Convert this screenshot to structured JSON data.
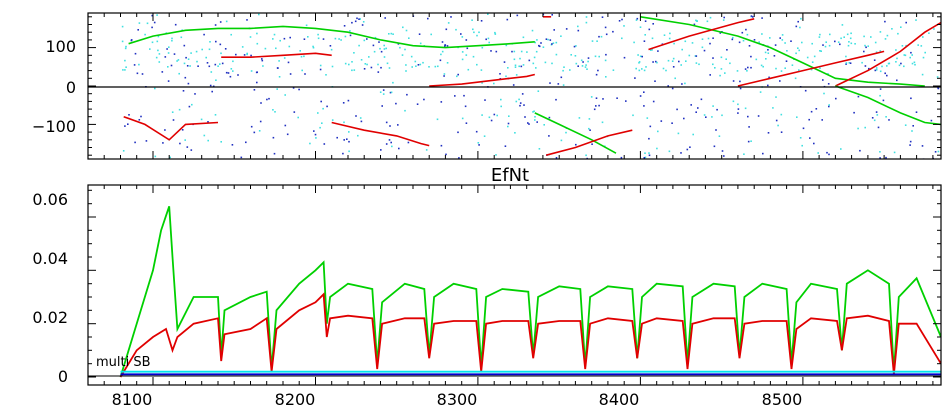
{
  "chart_data": [
    {
      "type": "scatter",
      "panel": "top",
      "title": "",
      "xlabel": "",
      "ylabel": "",
      "xlim": [
        8060,
        8585
      ],
      "ylim": [
        -190,
        190
      ],
      "yticks": [
        100,
        0,
        -100
      ],
      "ytick_labels": [
        "100",
        "0",
        "−100"
      ],
      "series": [
        {
          "color": "#00d000",
          "points": [
            [
              8085,
              110
            ],
            [
              8100,
              130
            ],
            [
              8120,
              145
            ],
            [
              8140,
              150
            ],
            [
              8160,
              150
            ],
            [
              8180,
              155
            ],
            [
              8200,
              150
            ],
            [
              8220,
              140
            ],
            [
              8240,
              120
            ],
            [
              8260,
              105
            ],
            [
              8280,
              100
            ],
            [
              8300,
              105
            ],
            [
              8320,
              110
            ],
            [
              8335,
              115
            ]
          ]
        },
        {
          "color": "#e00000",
          "points": [
            [
              8142,
              75
            ],
            [
              8160,
              75
            ],
            [
              8180,
              80
            ],
            [
              8200,
              85
            ],
            [
              8210,
              80
            ]
          ]
        },
        {
          "color": "#e00000",
          "points": [
            [
              8270,
              0
            ],
            [
              8290,
              5
            ],
            [
              8310,
              15
            ],
            [
              8330,
              25
            ],
            [
              8335,
              30
            ]
          ]
        },
        {
          "color": "#e00000",
          "points": [
            [
              8340,
              180
            ],
            [
              8345,
              180
            ]
          ]
        },
        {
          "color": "#00d000",
          "points": [
            [
              8400,
              180
            ],
            [
              8430,
              160
            ],
            [
              8460,
              130
            ],
            [
              8480,
              100
            ],
            [
              8500,
              60
            ],
            [
              8520,
              20
            ],
            [
              8540,
              10
            ],
            [
              8560,
              5
            ],
            [
              8575,
              0
            ]
          ]
        },
        {
          "color": "#e00000",
          "points": [
            [
              8405,
              95
            ],
            [
              8430,
              130
            ],
            [
              8460,
              165
            ],
            [
              8470,
              175
            ]
          ]
        },
        {
          "color": "#e00000",
          "points": [
            [
              8460,
              0
            ],
            [
              8480,
              20
            ],
            [
              8500,
              40
            ],
            [
              8520,
              60
            ],
            [
              8540,
              80
            ],
            [
              8550,
              90
            ]
          ]
        },
        {
          "color": "#e00000",
          "points": [
            [
              8520,
              0
            ],
            [
              8540,
              40
            ],
            [
              8560,
              90
            ],
            [
              8575,
              140
            ],
            [
              8585,
              165
            ]
          ]
        },
        {
          "color": "#e00000",
          "points": [
            [
              8082,
              -80
            ],
            [
              8095,
              -100
            ],
            [
              8110,
              -140
            ],
            [
              8120,
              -100
            ],
            [
              8140,
              -95
            ]
          ]
        },
        {
          "color": "#e00000",
          "points": [
            [
              8210,
              -95
            ],
            [
              8230,
              -115
            ],
            [
              8250,
              -130
            ],
            [
              8265,
              -150
            ],
            [
              8270,
              -155
            ]
          ]
        },
        {
          "color": "#00d000",
          "points": [
            [
              8335,
              -70
            ],
            [
              8350,
              -100
            ],
            [
              8370,
              -140
            ],
            [
              8385,
              -175
            ]
          ]
        },
        {
          "color": "#e00000",
          "points": [
            [
              8342,
              -180
            ],
            [
              8360,
              -160
            ],
            [
              8380,
              -130
            ],
            [
              8395,
              -115
            ]
          ]
        },
        {
          "color": "#00d000",
          "points": [
            [
              8520,
              0
            ],
            [
              8540,
              -30
            ],
            [
              8560,
              -70
            ],
            [
              8575,
              -95
            ],
            [
              8585,
              -100
            ]
          ]
        }
      ]
    },
    {
      "type": "line",
      "panel": "bottom",
      "title": "EfNt",
      "xlabel": "",
      "ylabel": "",
      "annotation": "multi SB",
      "xlim": [
        8060,
        8585
      ],
      "ylim": [
        -0.003,
        0.072
      ],
      "xticks": [
        8100,
        8200,
        8300,
        8400,
        8500
      ],
      "yticks": [
        0,
        0.02,
        0.04,
        0.06
      ],
      "ytick_labels": [
        "0",
        "0.02",
        "0.04",
        "0.06"
      ],
      "series": [
        {
          "color": "#00d000",
          "x": [
            8080,
            8090,
            8100,
            8105,
            8110,
            8112,
            8115,
            8125,
            8140,
            8142,
            8144,
            8160,
            8170,
            8173,
            8176,
            8190,
            8200,
            8205,
            8207,
            8209,
            8220,
            8235,
            8238,
            8241,
            8255,
            8267,
            8270,
            8273,
            8285,
            8299,
            8302,
            8305,
            8315,
            8331,
            8334,
            8337,
            8350,
            8363,
            8366,
            8369,
            8380,
            8395,
            8398,
            8401,
            8410,
            8426,
            8429,
            8432,
            8445,
            8458,
            8461,
            8464,
            8475,
            8490,
            8493,
            8496,
            8505,
            8521,
            8524,
            8527,
            8540,
            8553,
            8556,
            8559,
            8570,
            8585
          ],
          "y": [
            0.0,
            0.02,
            0.04,
            0.055,
            0.064,
            0.045,
            0.018,
            0.03,
            0.03,
            0.008,
            0.025,
            0.03,
            0.032,
            0.003,
            0.025,
            0.035,
            0.04,
            0.043,
            0.02,
            0.03,
            0.035,
            0.033,
            0.005,
            0.028,
            0.035,
            0.033,
            0.008,
            0.03,
            0.035,
            0.033,
            0.004,
            0.03,
            0.033,
            0.032,
            0.008,
            0.03,
            0.034,
            0.033,
            0.004,
            0.03,
            0.034,
            0.033,
            0.007,
            0.03,
            0.035,
            0.034,
            0.005,
            0.03,
            0.035,
            0.034,
            0.008,
            0.03,
            0.035,
            0.033,
            0.005,
            0.028,
            0.035,
            0.033,
            0.01,
            0.035,
            0.04,
            0.035,
            0.002,
            0.03,
            0.037,
            0.015
          ]
        },
        {
          "color": "#e00000",
          "x": [
            8080,
            8090,
            8100,
            8108,
            8112,
            8115,
            8125,
            8140,
            8142,
            8144,
            8160,
            8170,
            8173,
            8176,
            8190,
            8200,
            8205,
            8207,
            8209,
            8220,
            8235,
            8238,
            8241,
            8255,
            8267,
            8270,
            8273,
            8285,
            8299,
            8302,
            8305,
            8315,
            8331,
            8334,
            8337,
            8350,
            8363,
            8366,
            8369,
            8380,
            8395,
            8398,
            8401,
            8410,
            8426,
            8429,
            8432,
            8445,
            8458,
            8461,
            8464,
            8475,
            8490,
            8493,
            8496,
            8505,
            8521,
            8524,
            8527,
            8540,
            8553,
            8556,
            8559,
            8570,
            8585
          ],
          "y": [
            0.0,
            0.01,
            0.015,
            0.018,
            0.01,
            0.015,
            0.02,
            0.022,
            0.006,
            0.016,
            0.018,
            0.022,
            0.002,
            0.018,
            0.025,
            0.028,
            0.031,
            0.015,
            0.022,
            0.023,
            0.022,
            0.003,
            0.02,
            0.022,
            0.022,
            0.007,
            0.02,
            0.021,
            0.021,
            0.002,
            0.02,
            0.021,
            0.021,
            0.007,
            0.02,
            0.021,
            0.021,
            0.003,
            0.02,
            0.022,
            0.021,
            0.007,
            0.02,
            0.022,
            0.021,
            0.003,
            0.02,
            0.022,
            0.022,
            0.007,
            0.02,
            0.021,
            0.021,
            0.003,
            0.018,
            0.022,
            0.021,
            0.01,
            0.022,
            0.023,
            0.021,
            0.001,
            0.02,
            0.02,
            0.005
          ]
        },
        {
          "color": "#00e5ee",
          "x": [
            8080,
            8585
          ],
          "y": [
            0.002,
            0.002
          ]
        },
        {
          "color": "#0000cc",
          "x": [
            8080,
            8585
          ],
          "y": [
            0.001,
            0.001
          ]
        }
      ]
    }
  ]
}
